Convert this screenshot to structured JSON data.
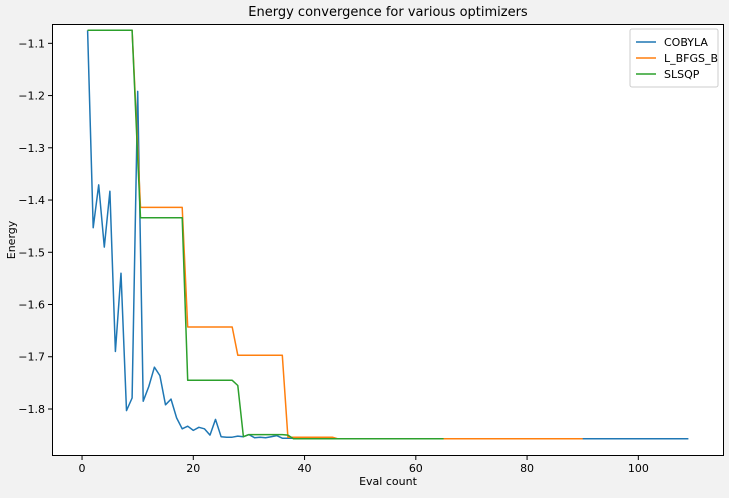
{
  "chart_data": {
    "type": "line",
    "title": "Energy convergence for various optimizers",
    "xlabel": "Eval count",
    "ylabel": "Energy",
    "xlim": [
      -5.4,
      115.4
    ],
    "ylim": [
      -1.89,
      -1.063
    ],
    "xticks": [
      0,
      20,
      40,
      60,
      80,
      100
    ],
    "yticks": [
      -1.1,
      -1.2,
      -1.3,
      -1.4,
      -1.5,
      -1.6,
      -1.7,
      -1.8
    ],
    "ytick_labels": [
      "−1.1",
      "−1.2",
      "−1.3",
      "−1.4",
      "−1.5",
      "−1.6",
      "−1.7",
      "−1.8"
    ],
    "grid": false,
    "legend_position": "top-right",
    "series": [
      {
        "name": "COBYLA",
        "color": "#1f77b4",
        "x": [
          1,
          2,
          3,
          4,
          5,
          6,
          7,
          8,
          9,
          10,
          11,
          12,
          13,
          14,
          15,
          16,
          17,
          18,
          19,
          20,
          21,
          22,
          23,
          24,
          25,
          26,
          27,
          28,
          29,
          30,
          31,
          32,
          33,
          34,
          35,
          36,
          37,
          38,
          39,
          40,
          41,
          42,
          43,
          44,
          45,
          46,
          47,
          48,
          49,
          50,
          55,
          60,
          65,
          70,
          80,
          90,
          100,
          109
        ],
        "y": [
          -1.075,
          -1.453,
          -1.371,
          -1.49,
          -1.383,
          -1.69,
          -1.54,
          -1.803,
          -1.779,
          -1.192,
          -1.785,
          -1.757,
          -1.72,
          -1.736,
          -1.792,
          -1.781,
          -1.817,
          -1.838,
          -1.833,
          -1.841,
          -1.835,
          -1.838,
          -1.85,
          -1.82,
          -1.853,
          -1.854,
          -1.854,
          -1.852,
          -1.853,
          -1.849,
          -1.855,
          -1.854,
          -1.855,
          -1.853,
          -1.851,
          -1.856,
          -1.856,
          -1.856,
          -1.857,
          -1.857,
          -1.857,
          -1.857,
          -1.857,
          -1.857,
          -1.857,
          -1.857,
          -1.857,
          -1.857,
          -1.857,
          -1.857,
          -1.857,
          -1.857,
          -1.857,
          -1.857,
          -1.857,
          -1.857,
          -1.857,
          -1.857
        ]
      },
      {
        "name": "L_BFGS_B",
        "color": "#ff7f0e",
        "x": [
          1,
          9,
          10,
          10.5,
          18,
          19,
          27,
          28,
          36,
          37,
          45,
          46,
          65,
          90
        ],
        "y": [
          -1.075,
          -1.075,
          -1.3,
          -1.414,
          -1.414,
          -1.643,
          -1.643,
          -1.697,
          -1.697,
          -1.854,
          -1.854,
          -1.857,
          -1.857,
          -1.857
        ]
      },
      {
        "name": "SLSQP",
        "color": "#2ca02c",
        "x": [
          1,
          9,
          10,
          10.5,
          18,
          19,
          27,
          28,
          29,
          30,
          35,
          36,
          37,
          38,
          45,
          65
        ],
        "y": [
          -1.075,
          -1.075,
          -1.32,
          -1.434,
          -1.434,
          -1.745,
          -1.745,
          -1.755,
          -1.853,
          -1.849,
          -1.849,
          -1.849,
          -1.85,
          -1.857,
          -1.857,
          -1.857
        ]
      }
    ]
  }
}
